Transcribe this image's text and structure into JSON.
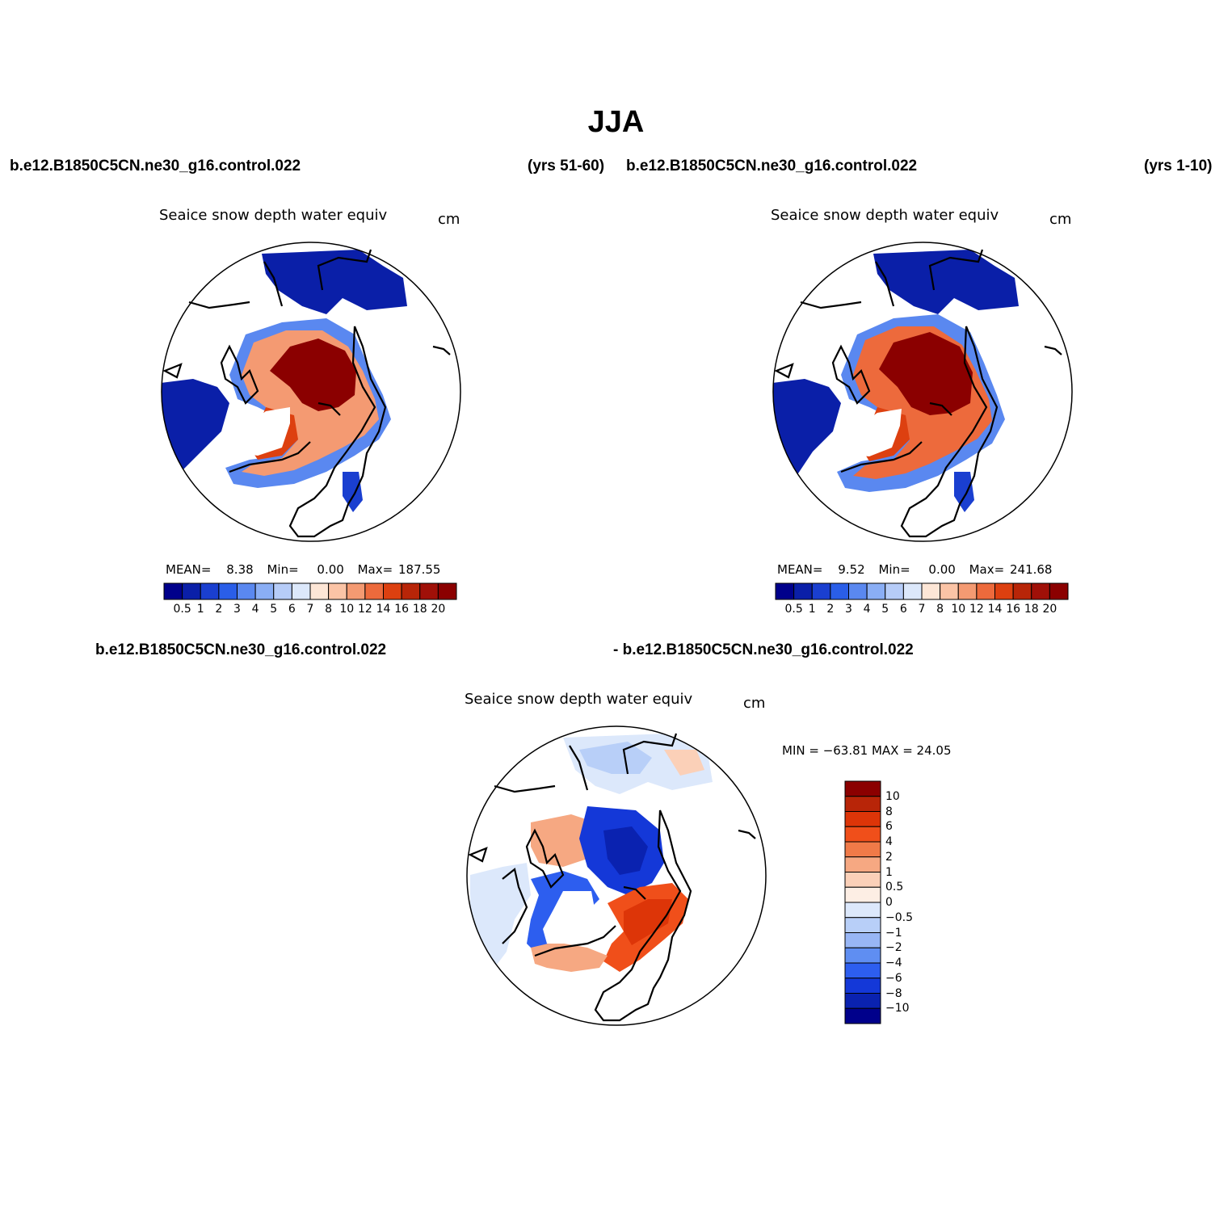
{
  "title": "JJA",
  "headers": {
    "left_case": "b.e12.B1850C5CN.ne30_g16.control.022",
    "left_years": "(yrs 51-60)",
    "right_case": "b.e12.B1850C5CN.ne30_g16.control.022",
    "right_years": "(yrs 1-10)",
    "diff_left": "b.e12.B1850C5CN.ne30_g16.control.022",
    "diff_right": "- b.e12.B1850C5CN.ne30_g16.control.022"
  },
  "panels": {
    "p1": {
      "variable": "Seaice snow depth water equiv",
      "units": "cm",
      "stats": {
        "mean_label": "MEAN=",
        "mean": "8.38",
        "min_label": "Min=",
        "min": "0.00",
        "max_label": "Max=",
        "max": "187.55"
      }
    },
    "p2": {
      "variable": "Seaice snow depth water equiv",
      "units": "cm",
      "stats": {
        "mean_label": "MEAN=",
        "mean": "9.52",
        "min_label": "Min=",
        "min": "0.00",
        "max_label": "Max=",
        "max": "241.68"
      }
    },
    "diff": {
      "variable": "Seaice snow depth water equiv",
      "units": "cm",
      "minmax": "MIN = −63.81  MAX =  24.05"
    }
  },
  "colorbar_abs": {
    "labels": [
      "0.5",
      "1",
      "2",
      "3",
      "4",
      "5",
      "6",
      "7",
      "8",
      "10",
      "12",
      "14",
      "16",
      "18",
      "20"
    ],
    "colors": [
      "#00008b",
      "#0a1fa8",
      "#1a3fd0",
      "#2a5ee8",
      "#5a88f0",
      "#8aaef5",
      "#b6ccf8",
      "#dce8fb",
      "#fde6d6",
      "#fbc4a6",
      "#f49a72",
      "#ed6a3c",
      "#dd4010",
      "#b82508",
      "#a01008",
      "#8b0000"
    ]
  },
  "colorbar_diff": {
    "labels": [
      "10",
      "8",
      "6",
      "4",
      "2",
      "1",
      "0.5",
      "0",
      "−0.5",
      "−1",
      "−2",
      "−4",
      "−6",
      "−8",
      "−10"
    ],
    "colors": [
      "#8b0000",
      "#b82508",
      "#dd3508",
      "#f04f1a",
      "#f07a48",
      "#f6a882",
      "#fbd0b8",
      "#fdeee4",
      "#dce8fb",
      "#b8cff8",
      "#98b6f5",
      "#5f8ef2",
      "#2d5eef",
      "#1438d8",
      "#0a22b0",
      "#00008b"
    ]
  },
  "map_feature_colors": {
    "thick_snow": "#8b0000",
    "moderate_snow": "#d94a20",
    "light_snow": "#f5a07a",
    "thin_ice_blue": "#2a5ee8",
    "deep_blue": "#00008b",
    "coast": "#000000"
  }
}
